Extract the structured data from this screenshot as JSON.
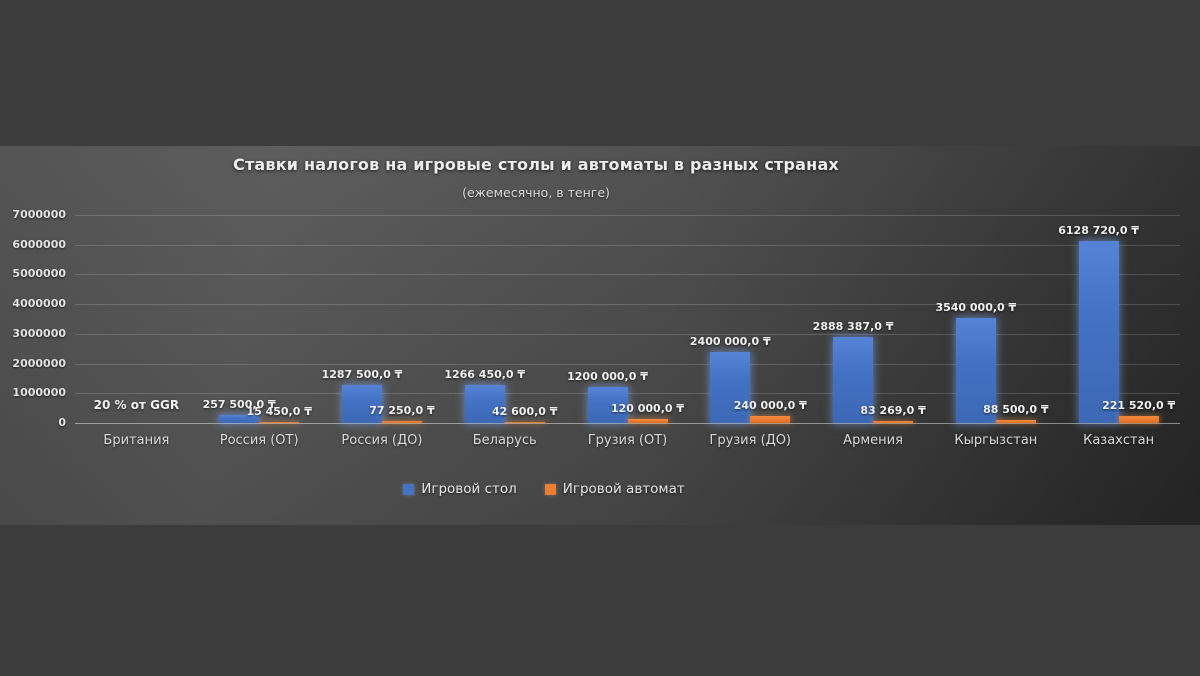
{
  "window": {
    "background": "#3c3c3c"
  },
  "chart": {
    "title": "Ставки налогов на игровые столы и автоматы в разных странах",
    "subtitle": "(ежемесячно, в тенге)"
  },
  "chart_data": {
    "type": "bar",
    "title": "Ставки налогов на игровые столы и автоматы в разных странах",
    "subtitle": "(ежемесячно, в тенге)",
    "categories": [
      "Британия",
      "Россия (ОТ)",
      "Россия (ДО)",
      "Беларусь",
      "Грузия (ОТ)",
      "Грузия (ДО)",
      "Армения",
      "Кыргызстан",
      "Казахстан"
    ],
    "series": [
      {
        "name": "Игровой стол",
        "color": "#4472C4",
        "values": [
          null,
          257500,
          1287500,
          1266450,
          1200000,
          2400000,
          2888387,
          3540000,
          6128720
        ],
        "labels": [
          "",
          "257 500,0 ₸",
          "1287 500,0 ₸",
          "1266 450,0 ₸",
          "1200 000,0 ₸",
          "2400 000,0 ₸",
          "2888 387,0 ₸",
          "3540 000,0 ₸",
          "6128 720,0 ₸"
        ]
      },
      {
        "name": "Игровой автомат",
        "color": "#ED7D31",
        "values": [
          null,
          15450,
          77250,
          42600,
          120000,
          240000,
          83269,
          88500,
          221520
        ],
        "labels": [
          "",
          "15 450,0 ₸",
          "77 250,0 ₸",
          "42 600,0 ₸",
          "120 000,0 ₸",
          "240 000,0 ₸",
          "83 269,0 ₸",
          "88 500,0 ₸",
          "221 520,0 ₸"
        ]
      }
    ],
    "annotations": [
      {
        "category_index": 0,
        "text": "20 % от GGR"
      }
    ],
    "ylim": [
      0,
      7000000
    ],
    "ytick_step": 1000000,
    "yticks": [
      0,
      1000000,
      2000000,
      3000000,
      4000000,
      5000000,
      6000000,
      7000000
    ],
    "grid": true,
    "legend_position": "bottom",
    "currency_symbol": "₸"
  }
}
